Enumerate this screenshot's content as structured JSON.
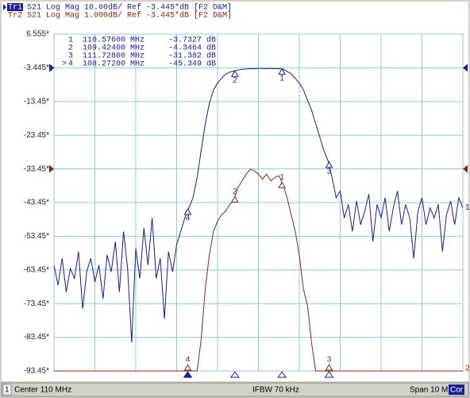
{
  "chart_data": {
    "type": "line",
    "header": [
      {
        "name": "Tr1",
        "text": "S21 Log Mag 10.00dB/ Ref -3.445*dB [F2 D&M]"
      },
      {
        "name": "Tr2",
        "text": "S21 Log Mag 1.000dB/ Ref -3.445*dB [F2 D&M]"
      }
    ],
    "xlim": [
      105,
      115
    ],
    "ylim": [
      -93.45,
      6.555
    ],
    "y2lim": [
      -9.445,
      0.555
    ],
    "yticks": [
      {
        "value": 6.555,
        "label": "6.555*"
      },
      {
        "value": -3.445,
        "label": "-3.445*"
      },
      {
        "value": -13.45,
        "label": "-13.45*"
      },
      {
        "value": -23.45,
        "label": "-23.45*"
      },
      {
        "value": -33.45,
        "label": "-33.45*"
      },
      {
        "value": -43.45,
        "label": "-43.45*"
      },
      {
        "value": -53.45,
        "label": "-53.45*"
      },
      {
        "value": -63.45,
        "label": "-63.45*"
      },
      {
        "value": -73.45,
        "label": "-73.45*"
      },
      {
        "value": -83.45,
        "label": "-83.45*"
      },
      {
        "value": -93.45,
        "label": "-93.45*"
      }
    ],
    "xticks": [
      105,
      106,
      107,
      108,
      109,
      110,
      111,
      112,
      113,
      114,
      115
    ],
    "grid": true,
    "x": [
      105,
      105.1,
      105.2,
      105.3,
      105.4,
      105.5,
      105.6,
      105.7,
      105.8,
      105.9,
      106,
      106.1,
      106.2,
      106.3,
      106.4,
      106.5,
      106.6,
      106.7,
      106.8,
      106.9,
      107,
      107.1,
      107.2,
      107.3,
      107.4,
      107.5,
      107.6,
      107.7,
      107.8,
      107.9,
      108,
      108.1,
      108.2,
      108.3,
      108.4,
      108.5,
      108.6,
      108.7,
      108.8,
      108.9,
      109,
      109.1,
      109.2,
      109.3,
      109.4,
      109.5,
      109.6,
      109.7,
      109.8,
      109.9,
      110,
      110.1,
      110.2,
      110.3,
      110.4,
      110.5,
      110.6,
      110.7,
      110.8,
      110.9,
      111,
      111.1,
      111.2,
      111.3,
      111.4,
      111.5,
      111.6,
      111.7,
      111.8,
      111.9,
      112,
      112.1,
      112.2,
      112.3,
      112.4,
      112.5,
      112.6,
      112.7,
      112.8,
      112.9,
      113,
      113.1,
      113.2,
      113.3,
      113.4,
      113.5,
      113.6,
      113.7,
      113.8,
      113.9,
      114,
      114.1,
      114.2,
      114.3,
      114.4,
      114.5,
      114.6,
      114.7,
      114.8,
      114.9,
      115
    ],
    "series": [
      {
        "name": "1",
        "color": "#1c1c98",
        "ref": -3.445,
        "values": [
          -62,
          -68,
          -60,
          -70,
          -63,
          -66,
          -58,
          -75,
          -64,
          -60,
          -67,
          -62,
          -72,
          -59,
          -64,
          -55,
          -70,
          -52,
          -63,
          -85,
          -57,
          -66,
          -51,
          -62,
          -48,
          -66,
          -60,
          -78,
          -58,
          -64,
          -56,
          -52,
          -48,
          -45,
          -42,
          -36,
          -28,
          -20,
          -14,
          -10,
          -8,
          -6.5,
          -5.3,
          -4.7,
          -4.4,
          -4.1,
          -3.9,
          -3.8,
          -3.7,
          -3.7,
          -3.6,
          -3.6,
          -3.7,
          -3.6,
          -3.7,
          -3.7,
          -3.8,
          -4.5,
          -5.2,
          -6.5,
          -8,
          -10,
          -13,
          -16,
          -20,
          -24,
          -28,
          -31,
          -36,
          -42,
          -40,
          -48,
          -44,
          -52,
          -43,
          -50,
          -46,
          -41,
          -55,
          -44,
          -48,
          -42,
          -52,
          -45,
          -40,
          -50,
          -44,
          -48,
          -60,
          -46,
          -42,
          -50,
          -45,
          -48,
          -44,
          -58,
          -47,
          -43,
          -50,
          -42,
          -45
        ]
      },
      {
        "name": "2",
        "color": "#8c2414",
        "ref": -3.445,
        "axis": "y2",
        "values": [
          -9.445,
          -9.445,
          -9.445,
          -9.445,
          -9.445,
          -9.445,
          -9.445,
          -9.445,
          -9.445,
          -9.445,
          -9.445,
          -9.445,
          -9.445,
          -9.445,
          -9.445,
          -9.445,
          -9.445,
          -9.445,
          -9.445,
          -9.445,
          -9.445,
          -9.445,
          -9.445,
          -9.445,
          -9.445,
          -9.445,
          -9.445,
          -9.445,
          -9.445,
          -9.445,
          -9.445,
          -9.445,
          -9.445,
          -9.445,
          -9.445,
          -9.445,
          -8.5,
          -7,
          -6,
          -5.3,
          -5,
          -4.8,
          -4.7,
          -4.5,
          -4.35,
          -4,
          -3.8,
          -3.6,
          -3.45,
          -3.5,
          -3.6,
          -3.75,
          -3.6,
          -3.8,
          -3.7,
          -3.65,
          -3.9,
          -4.3,
          -4.8,
          -5.3,
          -6,
          -7,
          -7.5,
          -8.6,
          -9.445,
          -9.445,
          -9.445,
          -9.445,
          -9.445,
          -9.445,
          -9.445,
          -9.445,
          -9.445,
          -9.445,
          -9.445,
          -9.445,
          -9.445,
          -9.445,
          -9.445,
          -9.445,
          -9.445,
          -9.445,
          -9.445,
          -9.445,
          -9.445,
          -9.445,
          -9.445,
          -9.445,
          -9.445,
          -9.445,
          -9.445,
          -9.445,
          -9.445,
          -9.445,
          -9.445,
          -9.445,
          -9.445,
          -9.445,
          -9.445,
          -9.445,
          -9.445
        ]
      }
    ],
    "active_symbol": ">",
    "active_marker": 3,
    "markers": [
      {
        "label": "1",
        "x": 110.576,
        "value": -3.7327,
        "x_label": "110.57600 MHz",
        "value_label": "-3.7327 dB"
      },
      {
        "label": "2",
        "x": 109.424,
        "value": -4.3464,
        "x_label": "109.42400 MHz",
        "value_label": "-4.3464 dB"
      },
      {
        "label": "3",
        "x": 111.728,
        "value": -31.382,
        "x_label": "111.72800 MHz",
        "value_label": "-31.382 dB"
      },
      {
        "label": "4",
        "x": 108.272,
        "value": -45.349,
        "x_label": "108.27200 MHz",
        "value_label": "-45.349 dB"
      }
    ],
    "status": {
      "channel": "1",
      "center": "Center 110 MHz",
      "ifbw": "IFBW 70 kHz",
      "span": "Span 10 MHz",
      "cor": "Cor"
    }
  }
}
